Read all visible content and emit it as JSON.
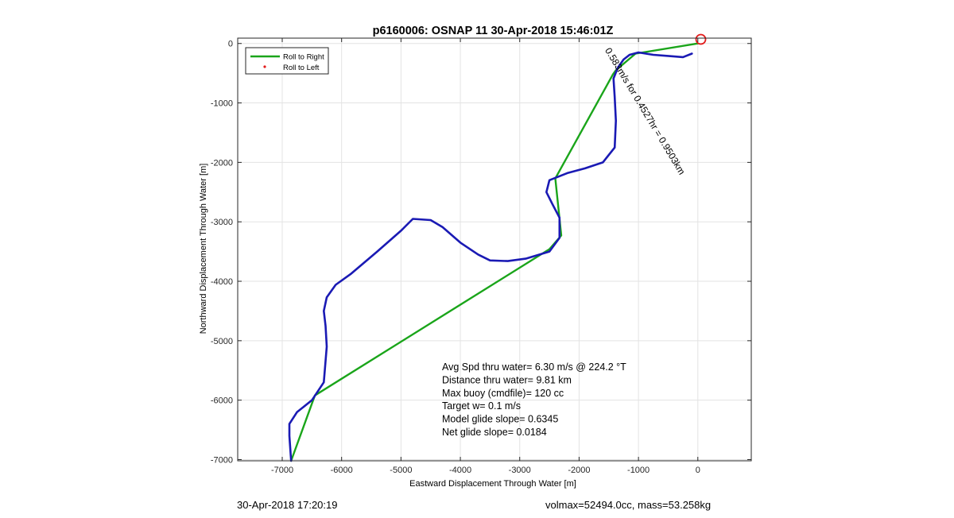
{
  "chart_data": {
    "type": "line",
    "title": "p6160006: OSNAP 11 30-Apr-2018 15:46:01Z",
    "xlabel": "Eastward Displacement Through Water [m]",
    "ylabel": "Northward Displacement Through Water [m]",
    "xlim": [
      -7750,
      900
    ],
    "ylim": [
      -7020,
      90
    ],
    "xticks": [
      -7000,
      -6000,
      -5000,
      -4000,
      -3000,
      -2000,
      -1000,
      0
    ],
    "yticks": [
      0,
      -1000,
      -2000,
      -3000,
      -4000,
      -5000,
      -6000,
      -7000
    ],
    "grid": true,
    "legend": {
      "placement": "top-left",
      "entries": [
        {
          "label": "Roll to Right",
          "color": "#1aa51a",
          "style": "line"
        },
        {
          "label": "Roll to Left",
          "color": "#e21b1b",
          "style": "dot"
        }
      ]
    },
    "series": [
      {
        "color": "#1aa51a",
        "x": [
          0,
          -1050,
          -1380,
          -1430,
          -2400,
          -2300,
          -2500,
          -6450,
          -6850
        ],
        "y": [
          0,
          -170,
          -450,
          -520,
          -2270,
          -3230,
          -3460,
          -5920,
          -7020
        ]
      },
      {
        "color": "#1a1ab4",
        "x": [
          -100,
          -250,
          -500,
          -750,
          -1000,
          -1150,
          -1250,
          -1350,
          -1420,
          -1400,
          -1380,
          -1400,
          -1600,
          -1900,
          -2200,
          -2500,
          -2550,
          -2450,
          -2330,
          -2330,
          -2500,
          -2900,
          -3200,
          -3500,
          -3700,
          -4000,
          -4300,
          -4500,
          -4800,
          -5000,
          -5400,
          -5850,
          -6100,
          -6250,
          -6300,
          -6270,
          -6250,
          -6300,
          -6500,
          -6750,
          -6880,
          -6880,
          -6850
        ],
        "y": [
          -170,
          -230,
          -210,
          -190,
          -150,
          -190,
          -270,
          -410,
          -590,
          -900,
          -1300,
          -1750,
          -2000,
          -2100,
          -2180,
          -2300,
          -2500,
          -2700,
          -2930,
          -3270,
          -3500,
          -3620,
          -3660,
          -3650,
          -3550,
          -3350,
          -3090,
          -2970,
          -2950,
          -3150,
          -3500,
          -3880,
          -4060,
          -4270,
          -4500,
          -4750,
          -5100,
          -5700,
          -6000,
          -6200,
          -6400,
          -6600,
          -7020
        ]
      }
    ],
    "markers": [
      {
        "x": 50,
        "y": 70,
        "color": "#e21b1b",
        "shape": "circle"
      }
    ],
    "annotations": [
      {
        "text": "Avg Spd thru water=  6.30 m/s @ 224.2 °T"
      },
      {
        "text": "Distance thru water=  9.81 km"
      },
      {
        "text": "Max buoy (cmdfile)= 120 cc"
      },
      {
        "text": "Target w= 0.1 m/s"
      },
      {
        "text": "Model glide slope= 0.6345"
      },
      {
        "text": "Net glide slope= 0.0184"
      }
    ],
    "rotated_label": {
      "text": "0.583m/s for 0.4527hr = 0.9503km",
      "angle_deg": 59
    }
  },
  "footer": {
    "left": "30-Apr-2018 17:20:19",
    "right": "volmax=52494.0cc, mass=53.258kg"
  }
}
